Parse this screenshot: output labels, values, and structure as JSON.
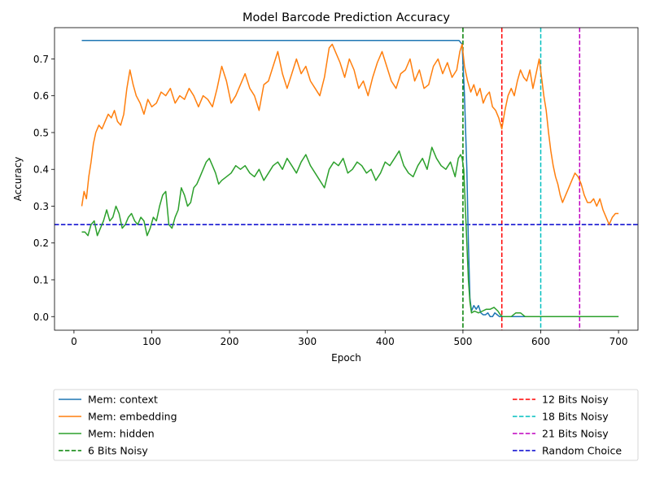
{
  "chart_data": {
    "type": "line",
    "title": "Model Barcode Prediction Accuracy",
    "xlabel": "Epoch",
    "ylabel": "Accuracy",
    "xlim": [
      -25,
      725
    ],
    "ylim": [
      -0.037,
      0.785
    ],
    "xticks": [
      0,
      100,
      200,
      300,
      400,
      500,
      600,
      700
    ],
    "yticks": [
      0.0,
      0.1,
      0.2,
      0.3,
      0.4,
      0.5,
      0.6,
      0.7
    ],
    "grid": false,
    "legend_placement": "below",
    "series": [
      {
        "name": "Mem: context",
        "color": "#1f77b4",
        "style": "solid",
        "x": [
          10,
          495,
          499,
          502,
          505,
          507,
          509,
          511,
          514,
          517,
          520,
          523,
          526,
          529,
          532,
          535,
          538,
          541,
          544,
          547,
          550,
          700
        ],
        "y": [
          0.75,
          0.75,
          0.74,
          0.6,
          0.4,
          0.2,
          0.05,
          0.015,
          0.03,
          0.02,
          0.03,
          0.01,
          0.005,
          0.005,
          0.01,
          0.0,
          0.0,
          0.01,
          0.005,
          0.0,
          0.0,
          0.0
        ]
      },
      {
        "name": "Mem: embedding",
        "color": "#ff7f0e",
        "style": "solid",
        "x": [
          10,
          13,
          16,
          19,
          22,
          25,
          28,
          32,
          36,
          40,
          44,
          48,
          52,
          56,
          60,
          64,
          68,
          72,
          76,
          80,
          85,
          90,
          95,
          100,
          106,
          112,
          118,
          124,
          130,
          136,
          142,
          148,
          154,
          160,
          166,
          172,
          178,
          184,
          190,
          196,
          202,
          208,
          214,
          220,
          226,
          232,
          238,
          244,
          250,
          256,
          262,
          268,
          274,
          280,
          286,
          292,
          298,
          304,
          310,
          316,
          322,
          328,
          332,
          336,
          342,
          348,
          354,
          360,
          366,
          372,
          378,
          384,
          390,
          396,
          402,
          408,
          414,
          420,
          426,
          432,
          438,
          444,
          450,
          456,
          462,
          468,
          474,
          480,
          486,
          492,
          496,
          499,
          502,
          506,
          510,
          514,
          518,
          522,
          526,
          530,
          534,
          538,
          542,
          546,
          550,
          554,
          558,
          562,
          566,
          570,
          574,
          578,
          582,
          586,
          590,
          594,
          598,
          601,
          604,
          607,
          610,
          613,
          616,
          619,
          622,
          625,
          628,
          632,
          636,
          640,
          644,
          648,
          652,
          656,
          660,
          664,
          668,
          672,
          676,
          680,
          684,
          688,
          692,
          696,
          700
        ],
        "y": [
          0.3,
          0.34,
          0.32,
          0.38,
          0.42,
          0.47,
          0.5,
          0.52,
          0.51,
          0.53,
          0.55,
          0.54,
          0.56,
          0.53,
          0.52,
          0.55,
          0.62,
          0.67,
          0.63,
          0.6,
          0.58,
          0.55,
          0.59,
          0.57,
          0.58,
          0.61,
          0.6,
          0.62,
          0.58,
          0.6,
          0.59,
          0.62,
          0.6,
          0.57,
          0.6,
          0.59,
          0.57,
          0.62,
          0.68,
          0.64,
          0.58,
          0.6,
          0.63,
          0.66,
          0.62,
          0.6,
          0.56,
          0.63,
          0.64,
          0.68,
          0.72,
          0.66,
          0.62,
          0.66,
          0.7,
          0.66,
          0.68,
          0.64,
          0.62,
          0.6,
          0.65,
          0.73,
          0.74,
          0.72,
          0.69,
          0.65,
          0.7,
          0.67,
          0.62,
          0.64,
          0.6,
          0.65,
          0.69,
          0.72,
          0.68,
          0.64,
          0.62,
          0.66,
          0.67,
          0.7,
          0.64,
          0.67,
          0.62,
          0.63,
          0.68,
          0.7,
          0.66,
          0.69,
          0.65,
          0.67,
          0.72,
          0.74,
          0.68,
          0.64,
          0.61,
          0.63,
          0.6,
          0.62,
          0.58,
          0.6,
          0.61,
          0.57,
          0.56,
          0.54,
          0.51,
          0.56,
          0.6,
          0.62,
          0.6,
          0.64,
          0.67,
          0.65,
          0.64,
          0.67,
          0.62,
          0.66,
          0.7,
          0.65,
          0.6,
          0.56,
          0.5,
          0.45,
          0.41,
          0.38,
          0.36,
          0.33,
          0.31,
          0.33,
          0.35,
          0.37,
          0.39,
          0.38,
          0.36,
          0.33,
          0.31,
          0.31,
          0.32,
          0.3,
          0.32,
          0.29,
          0.27,
          0.25,
          0.27,
          0.28,
          0.28
        ]
      },
      {
        "name": "Mem: hidden",
        "color": "#2ca02c",
        "style": "solid",
        "x": [
          10,
          14,
          18,
          22,
          26,
          30,
          34,
          38,
          42,
          46,
          50,
          54,
          58,
          62,
          66,
          70,
          74,
          78,
          82,
          86,
          90,
          94,
          98,
          102,
          106,
          110,
          114,
          118,
          122,
          126,
          130,
          134,
          138,
          142,
          146,
          150,
          154,
          158,
          162,
          166,
          170,
          174,
          178,
          182,
          186,
          190,
          196,
          202,
          208,
          214,
          220,
          226,
          232,
          238,
          244,
          250,
          256,
          262,
          268,
          274,
          280,
          286,
          292,
          298,
          304,
          310,
          316,
          322,
          328,
          334,
          340,
          346,
          352,
          358,
          364,
          370,
          376,
          382,
          388,
          394,
          400,
          406,
          412,
          418,
          424,
          430,
          436,
          442,
          448,
          454,
          460,
          466,
          472,
          478,
          484,
          490,
          494,
          497,
          499,
          501,
          503,
          505,
          507,
          509,
          511,
          515,
          520,
          525,
          530,
          535,
          540,
          545,
          548,
          551,
          556,
          562,
          568,
          574,
          580,
          700
        ],
        "y": [
          0.23,
          0.23,
          0.22,
          0.25,
          0.26,
          0.22,
          0.24,
          0.26,
          0.29,
          0.26,
          0.27,
          0.3,
          0.28,
          0.24,
          0.25,
          0.27,
          0.28,
          0.26,
          0.25,
          0.27,
          0.26,
          0.22,
          0.24,
          0.27,
          0.26,
          0.3,
          0.33,
          0.34,
          0.25,
          0.24,
          0.27,
          0.29,
          0.35,
          0.33,
          0.3,
          0.31,
          0.35,
          0.36,
          0.38,
          0.4,
          0.42,
          0.43,
          0.41,
          0.39,
          0.36,
          0.37,
          0.38,
          0.39,
          0.41,
          0.4,
          0.41,
          0.39,
          0.38,
          0.4,
          0.37,
          0.39,
          0.41,
          0.42,
          0.4,
          0.43,
          0.41,
          0.39,
          0.42,
          0.44,
          0.41,
          0.39,
          0.37,
          0.35,
          0.4,
          0.42,
          0.41,
          0.43,
          0.39,
          0.4,
          0.42,
          0.41,
          0.39,
          0.4,
          0.37,
          0.39,
          0.42,
          0.41,
          0.43,
          0.45,
          0.41,
          0.39,
          0.38,
          0.41,
          0.43,
          0.4,
          0.46,
          0.43,
          0.41,
          0.4,
          0.42,
          0.38,
          0.43,
          0.44,
          0.43,
          0.4,
          0.3,
          0.2,
          0.1,
          0.04,
          0.01,
          0.015,
          0.01,
          0.015,
          0.02,
          0.02,
          0.025,
          0.015,
          0.005,
          0.0,
          0.0,
          0.0,
          0.01,
          0.01,
          0.0,
          0.0
        ]
      }
    ],
    "reference_lines": [
      {
        "name": "6 Bits Noisy",
        "orientation": "vertical",
        "x": 500,
        "color": "#008000",
        "style": "dashed"
      },
      {
        "name": "12 Bits Noisy",
        "orientation": "vertical",
        "x": 550,
        "color": "#ff0000",
        "style": "dashed"
      },
      {
        "name": "18 Bits Noisy",
        "orientation": "vertical",
        "x": 600,
        "color": "#00bfbf",
        "style": "dashed"
      },
      {
        "name": "21 Bits Noisy",
        "orientation": "vertical",
        "x": 650,
        "color": "#bf00bf",
        "style": "dashed"
      },
      {
        "name": "Random Choice",
        "orientation": "horizontal",
        "y": 0.25,
        "color": "#0000cd",
        "style": "dashed"
      }
    ],
    "legend": {
      "left_column": [
        "Mem: context",
        "Mem: embedding",
        "Mem: hidden",
        "6 Bits Noisy"
      ],
      "right_column": [
        "12 Bits Noisy",
        "18 Bits Noisy",
        "21 Bits Noisy",
        "Random Choice"
      ]
    }
  }
}
